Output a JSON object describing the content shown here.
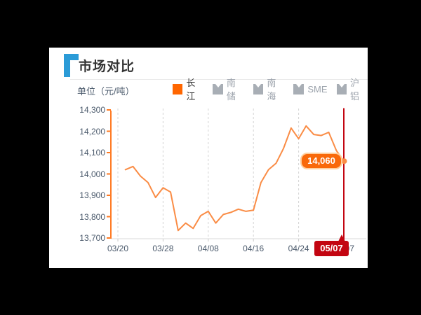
{
  "header": {
    "title": "市场对比"
  },
  "chart": {
    "unit_label": "单位（元/吨）",
    "legend": [
      {
        "label": "长江",
        "active": true
      },
      {
        "label": "南储",
        "active": false
      },
      {
        "label": "南海",
        "active": false
      },
      {
        "label": "SME",
        "active": false
      },
      {
        "label": "沪铝",
        "active": false
      }
    ],
    "value_bubble": "14,060",
    "crosshair_date": "05/07"
  },
  "chart_data": {
    "type": "line",
    "title": "市场对比",
    "ylabel": "单位（元/吨）",
    "series": [
      {
        "name": "长江",
        "values": [
          14020,
          14035,
          13990,
          13960,
          13890,
          13935,
          13915,
          13735,
          13770,
          13745,
          13805,
          13825,
          13770,
          13810,
          13820,
          13835,
          13825,
          13830,
          13960,
          14020,
          14050,
          14120,
          14215,
          14165,
          14225,
          14185,
          14180,
          14195,
          14110,
          14060
        ]
      }
    ],
    "x_tick_labels": [
      "03/20",
      "03/28",
      "04/08",
      "04/16",
      "04/24",
      "05/07"
    ],
    "x_tick_slots": [
      0,
      6,
      12,
      18,
      24,
      30
    ],
    "num_slots": 31,
    "data_start_slot": 1,
    "y_ticks": [
      14300,
      14200,
      14100,
      14000,
      13900,
      13800,
      13700
    ],
    "y_tick_labels": [
      "14,300",
      "14,200",
      "14,100",
      "14,000",
      "13,900",
      "13,800",
      "13,700"
    ],
    "ylim": [
      13700,
      14300
    ],
    "grid": "vertical-dashed",
    "legend_position": "top",
    "highlight": {
      "index": 29,
      "value": 14060,
      "value_label": "14,060",
      "date_label": "05/07"
    }
  },
  "colors": {
    "accent_orange": "#ff6600",
    "line_orange": "#fa8c45",
    "axis_orange": "#ff7a22",
    "crosshair_red": "#c30511",
    "inactive_gray": "#a8aeb5",
    "axis_text": "#4a596b",
    "title_blue": "#2b9bd7",
    "grid_gray": "#d4d4d4"
  }
}
